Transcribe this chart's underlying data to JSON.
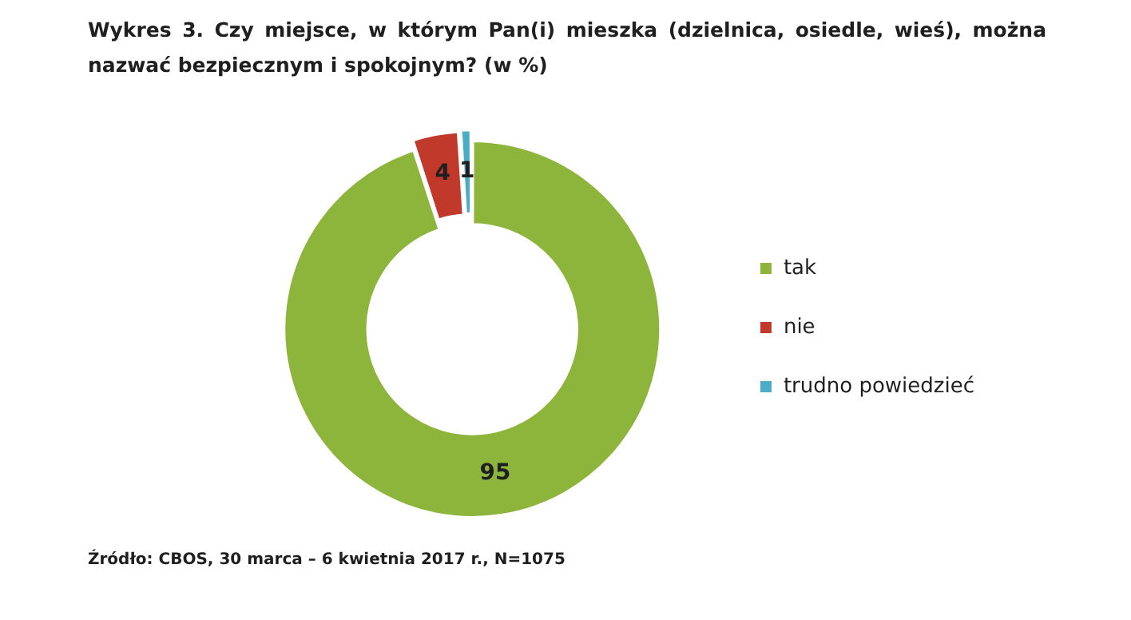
{
  "chart_data": {
    "type": "donut",
    "title": "Wykres 3. Czy miejsce, w którym Pan(i) mieszka (dzielnica, osiedle, wieś), można nazwać bezpiecznym i spokojnym? (w %)",
    "categories": [
      "tak",
      "nie",
      "trudno powiedzieć"
    ],
    "values": [
      95,
      4,
      1
    ],
    "colors": [
      "#8db53c",
      "#c0392b",
      "#4bacc6"
    ],
    "data_labels": true,
    "legend": "right",
    "annotations": [
      "Źródło: CBOS, 30 marca – 6 kwietnia 2017 r., N=1075"
    ]
  }
}
